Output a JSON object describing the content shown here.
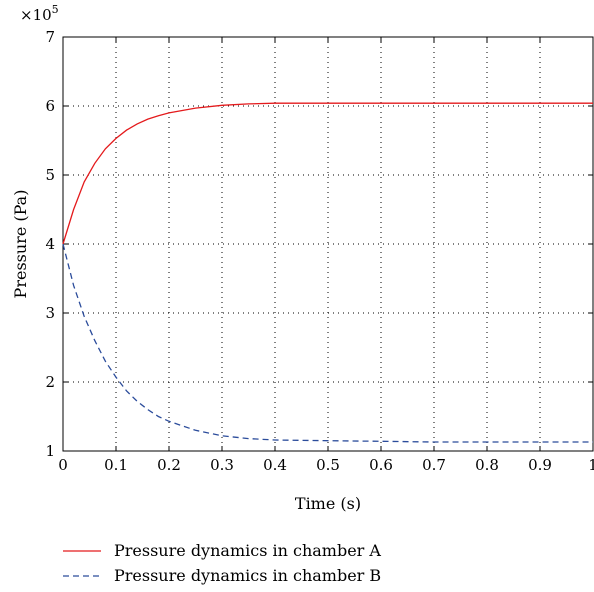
{
  "chart_data": {
    "type": "line",
    "title": "",
    "xlabel": "Time (s)",
    "ylabel": "Pressure (Pa)",
    "y_multiplier_label": "×10",
    "y_multiplier_exponent": "5",
    "xlim": [
      0,
      1
    ],
    "ylim": [
      1,
      7
    ],
    "x_ticks": [
      0,
      0.1,
      0.2,
      0.3,
      0.4,
      0.5,
      0.6,
      0.7,
      0.8,
      0.9,
      1
    ],
    "x_tick_labels": [
      "0",
      "0.1",
      "0.2",
      "0.3",
      "0.4",
      "0.5",
      "0.6",
      "0.7",
      "0.8",
      "0.9",
      "1"
    ],
    "y_ticks": [
      1,
      2,
      3,
      4,
      5,
      6,
      7
    ],
    "y_tick_labels": [
      "1",
      "2",
      "3",
      "4",
      "5",
      "6",
      "7"
    ],
    "grid": true,
    "legend_placement": "below",
    "series": [
      {
        "name": "Pressure dynamics in chamber A",
        "color": "#e41a1c",
        "dash": "solid",
        "x": [
          0,
          0.02,
          0.04,
          0.06,
          0.08,
          0.1,
          0.12,
          0.14,
          0.16,
          0.18,
          0.2,
          0.25,
          0.3,
          0.35,
          0.4,
          0.5,
          0.6,
          0.7,
          0.8,
          0.9,
          1.0
        ],
        "y": [
          4.0,
          4.5,
          4.9,
          5.17,
          5.38,
          5.53,
          5.65,
          5.74,
          5.81,
          5.86,
          5.9,
          5.97,
          6.01,
          6.03,
          6.04,
          6.04,
          6.04,
          6.04,
          6.04,
          6.04,
          6.04
        ]
      },
      {
        "name": "Pressure dynamics in chamber B",
        "color": "#2b4c9b",
        "dash": "dashed",
        "x": [
          0,
          0.02,
          0.04,
          0.06,
          0.08,
          0.1,
          0.12,
          0.14,
          0.16,
          0.18,
          0.2,
          0.25,
          0.3,
          0.35,
          0.4,
          0.5,
          0.6,
          0.7,
          0.8,
          0.9,
          1.0
        ],
        "y": [
          4.0,
          3.4,
          2.95,
          2.6,
          2.3,
          2.07,
          1.87,
          1.72,
          1.6,
          1.5,
          1.43,
          1.3,
          1.22,
          1.18,
          1.16,
          1.15,
          1.14,
          1.13,
          1.13,
          1.13,
          1.13
        ]
      }
    ]
  }
}
